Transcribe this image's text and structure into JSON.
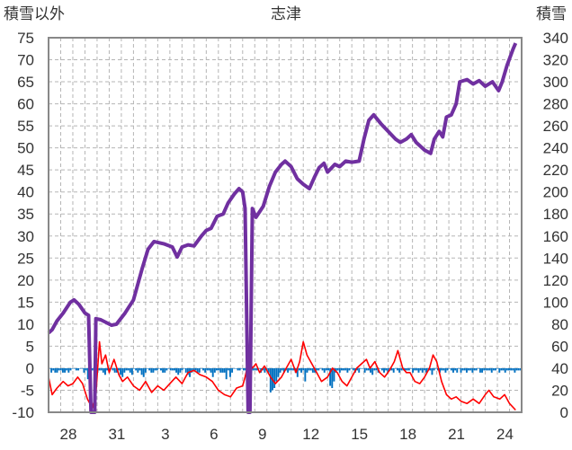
{
  "chart_data": {
    "type": "line",
    "title": "志津",
    "left_axis_label": "積雪以外",
    "right_axis_label": "積雪",
    "left_ylim": [
      -10,
      75
    ],
    "right_ylim": [
      0,
      340
    ],
    "left_ticks": [
      "75",
      "70",
      "65",
      "60",
      "55",
      "50",
      "45",
      "40",
      "35",
      "30",
      "25",
      "20",
      "15",
      "10",
      "5",
      "0",
      "-5",
      "-10"
    ],
    "right_ticks": [
      "340",
      "320",
      "300",
      "280",
      "260",
      "240",
      "220",
      "200",
      "180",
      "160",
      "140",
      "120",
      "100",
      "80",
      "60",
      "40",
      "20",
      "0"
    ],
    "x_ticks": [
      "28",
      "31",
      "3",
      "6",
      "9",
      "12",
      "15",
      "18",
      "21",
      "24"
    ],
    "grid": true,
    "colors": {
      "snow_depth": "#7030a0",
      "temperature": "#ff0000",
      "precipitation": "#0070c0"
    },
    "series": [
      {
        "key": "snow_depth",
        "axis": "right",
        "points": [
          [
            0,
            72
          ],
          [
            0.3,
            75
          ],
          [
            0.7,
            83
          ],
          [
            1.2,
            90
          ],
          [
            1.8,
            100
          ],
          [
            2.1,
            102
          ],
          [
            2.5,
            98
          ],
          [
            3,
            90
          ],
          [
            3.3,
            88
          ],
          [
            3.5,
            0
          ],
          [
            3.8,
            0
          ],
          [
            3.9,
            85
          ],
          [
            4.3,
            84
          ],
          [
            5.2,
            79
          ],
          [
            5.6,
            80
          ],
          [
            6.3,
            90
          ],
          [
            7,
            102
          ],
          [
            7.7,
            130
          ],
          [
            8.2,
            148
          ],
          [
            8.7,
            155
          ],
          [
            9.5,
            153
          ],
          [
            10.2,
            150
          ],
          [
            10.6,
            141
          ],
          [
            11,
            150
          ],
          [
            11.5,
            152
          ],
          [
            12,
            151
          ],
          [
            12.6,
            160
          ],
          [
            13,
            165
          ],
          [
            13.4,
            167
          ],
          [
            13.9,
            178
          ],
          [
            14.4,
            180
          ],
          [
            14.8,
            190
          ],
          [
            15.3,
            198
          ],
          [
            15.7,
            203
          ],
          [
            16,
            200
          ],
          [
            16.2,
            185
          ],
          [
            16.45,
            0
          ],
          [
            16.6,
            0
          ],
          [
            16.8,
            185
          ],
          [
            17.1,
            177
          ],
          [
            17.7,
            187
          ],
          [
            18.2,
            205
          ],
          [
            18.7,
            218
          ],
          [
            19.2,
            225
          ],
          [
            19.5,
            228
          ],
          [
            20,
            223
          ],
          [
            20.5,
            212
          ],
          [
            21,
            207
          ],
          [
            21.5,
            203
          ],
          [
            21.9,
            213
          ],
          [
            22.3,
            222
          ],
          [
            22.7,
            226
          ],
          [
            23,
            218
          ],
          [
            23.6,
            225
          ],
          [
            24,
            223
          ],
          [
            24.5,
            228
          ],
          [
            25,
            227
          ],
          [
            25.6,
            228
          ],
          [
            26,
            248
          ],
          [
            26.4,
            265
          ],
          [
            26.8,
            270
          ],
          [
            27.4,
            262
          ],
          [
            28,
            255
          ],
          [
            28.6,
            248
          ],
          [
            29,
            245
          ],
          [
            29.5,
            248
          ],
          [
            29.9,
            252
          ],
          [
            30.3,
            245
          ],
          [
            31,
            238
          ],
          [
            31.5,
            235
          ],
          [
            31.8,
            248
          ],
          [
            32.2,
            255
          ],
          [
            32.5,
            250
          ],
          [
            32.8,
            268
          ],
          [
            33.2,
            270
          ],
          [
            33.6,
            280
          ],
          [
            33.9,
            300
          ],
          [
            34.5,
            302
          ],
          [
            35,
            298
          ],
          [
            35.5,
            301
          ],
          [
            36,
            296
          ],
          [
            36.6,
            300
          ],
          [
            37.1,
            292
          ],
          [
            37.4,
            300
          ],
          [
            37.8,
            315
          ],
          [
            38.3,
            330
          ],
          [
            38.5,
            335
          ]
        ]
      },
      {
        "key": "temperature",
        "axis": "left",
        "points": [
          [
            0,
            -2
          ],
          [
            0.3,
            -6
          ],
          [
            0.7,
            -4.5
          ],
          [
            1.2,
            -3
          ],
          [
            1.6,
            -4
          ],
          [
            2,
            -3.5
          ],
          [
            2.4,
            -2
          ],
          [
            2.8,
            -3.5
          ],
          [
            3.2,
            -7
          ],
          [
            3.6,
            -9
          ],
          [
            3.9,
            -6
          ],
          [
            4.2,
            6
          ],
          [
            4.4,
            1
          ],
          [
            4.7,
            3
          ],
          [
            5,
            -1
          ],
          [
            5.4,
            2
          ],
          [
            5.8,
            -1.5
          ],
          [
            6.1,
            -3
          ],
          [
            6.5,
            -2
          ],
          [
            7,
            -4
          ],
          [
            7.5,
            -5
          ],
          [
            8,
            -3
          ],
          [
            8.5,
            -5.5
          ],
          [
            9,
            -4
          ],
          [
            9.5,
            -5
          ],
          [
            10,
            -3.5
          ],
          [
            10.5,
            -2
          ],
          [
            11,
            -3.5
          ],
          [
            11.5,
            -1
          ],
          [
            12,
            -0.5
          ],
          [
            12.5,
            -1.5
          ],
          [
            13,
            -2
          ],
          [
            13.5,
            -3
          ],
          [
            14,
            -5
          ],
          [
            14.5,
            -6
          ],
          [
            15,
            -6.5
          ],
          [
            15.5,
            -4.5
          ],
          [
            16,
            -4
          ],
          [
            16.2,
            -2
          ],
          [
            16.4,
            0.5
          ],
          [
            16.6,
            1.5
          ],
          [
            16.8,
            0
          ],
          [
            17.1,
            1
          ],
          [
            17.4,
            -1
          ],
          [
            17.8,
            0.5
          ],
          [
            18.3,
            -2
          ],
          [
            18.7,
            -3.5
          ],
          [
            19.2,
            -2
          ],
          [
            19.6,
            0
          ],
          [
            20,
            2
          ],
          [
            20.4,
            -1
          ],
          [
            20.7,
            1.5
          ],
          [
            21,
            6
          ],
          [
            21.3,
            3
          ],
          [
            21.7,
            1
          ],
          [
            22.1,
            -1
          ],
          [
            22.5,
            -3
          ],
          [
            23,
            -2
          ],
          [
            23.4,
            0
          ],
          [
            23.8,
            -1
          ],
          [
            24.2,
            -3
          ],
          [
            24.6,
            -4
          ],
          [
            25,
            -2
          ],
          [
            25.4,
            0
          ],
          [
            25.8,
            1
          ],
          [
            26.2,
            2
          ],
          [
            26.5,
            0
          ],
          [
            26.9,
            1.5
          ],
          [
            27.3,
            -1
          ],
          [
            27.7,
            -2
          ],
          [
            28.1,
            -0.5
          ],
          [
            28.5,
            1.5
          ],
          [
            28.8,
            4
          ],
          [
            29.2,
            0
          ],
          [
            29.5,
            -1
          ],
          [
            29.8,
            -1
          ],
          [
            30.2,
            -3
          ],
          [
            30.6,
            -3.5
          ],
          [
            31,
            -2
          ],
          [
            31.4,
            0
          ],
          [
            31.7,
            3
          ],
          [
            32,
            1.5
          ],
          [
            32.4,
            -3
          ],
          [
            32.8,
            -6
          ],
          [
            33.2,
            -7
          ],
          [
            33.6,
            -6.5
          ],
          [
            34,
            -7.5
          ],
          [
            34.5,
            -8
          ],
          [
            35,
            -7
          ],
          [
            35.5,
            -8
          ],
          [
            36,
            -6
          ],
          [
            36.3,
            -5
          ],
          [
            36.7,
            -6.5
          ],
          [
            37.2,
            -7
          ],
          [
            37.6,
            -6
          ],
          [
            38,
            -8
          ],
          [
            38.5,
            -9.5
          ]
        ]
      },
      {
        "key": "precipitation",
        "axis": "left",
        "values": [
          0,
          -1,
          -0.5,
          -1,
          -1,
          -0.5,
          -0.5,
          -1,
          -1,
          -0.5,
          -1,
          -0.5,
          0,
          0,
          -0.5,
          -0.5,
          0,
          0,
          -1,
          -0.5,
          -2.5,
          -1,
          -0.5,
          -0.5,
          -2.5,
          -1,
          -0.5,
          -0.5,
          -1,
          -1.5,
          -0.5,
          -0.5,
          0,
          -0.5,
          -1,
          -1,
          -0.5,
          -1.5,
          -2,
          -1,
          -0.5,
          -0.5,
          -1,
          -1.5,
          0,
          -0.5,
          -1,
          -0.5,
          -1.5,
          -2,
          -1,
          0,
          -0.5,
          -1,
          -1,
          -0.5,
          -0.5,
          0,
          -0.5,
          -1,
          -1,
          -0.5,
          0,
          -0.5,
          -0.5,
          -0.5,
          -1,
          -1.5,
          -1,
          -0.5,
          0,
          -1,
          -1.5,
          -2,
          -1,
          -0.5,
          -0.5,
          -1,
          -1,
          0,
          -0.5,
          -1,
          -0.5,
          -0.5,
          -1,
          -2,
          -1,
          -0.5,
          -0.5,
          -1,
          -1,
          -1,
          -2.5,
          -0.5,
          -2,
          -1,
          0,
          0,
          -0.5,
          -0.5,
          0,
          -0.5,
          -0.5,
          -1,
          -0.5,
          -1,
          -0.5,
          -0.5,
          -0.5,
          0,
          -1,
          -0.5,
          -1,
          -0.5,
          -1,
          -5.5,
          -5,
          -4.5,
          -3,
          -2,
          -1,
          -0.5,
          -1,
          -0.5,
          -1,
          -0.5,
          -0.5,
          -0.5,
          -1,
          -2,
          -0.5,
          -1,
          -0.5,
          -3,
          -1,
          -0.5,
          -0.5,
          -1,
          -1,
          -0.5,
          -0.5,
          0,
          -0.5,
          -1,
          -0.5,
          -0.5,
          -4,
          -4.5,
          -3,
          -1,
          -0.5,
          -1,
          -0.5,
          -0.5,
          -0.5,
          -1,
          -0.5,
          0,
          -0.5,
          -1,
          -0.5,
          -1,
          0,
          0,
          -1,
          -0.5,
          -0.5,
          -1,
          -1.5,
          -0.5,
          -0.5,
          -1,
          0,
          -0.5,
          -1,
          -0.5,
          -1,
          -0.5,
          -0.5,
          -1,
          0,
          -0.5,
          -1,
          -0.5,
          -0.5,
          -0.5,
          -0.5,
          -0.5,
          0,
          -1,
          -0.5,
          -0.5,
          -1,
          -0.5,
          -1,
          -0.5,
          -1,
          -0.5,
          -0.5,
          -1.5,
          -0.5,
          0,
          -0.5,
          -1,
          -0.5,
          -0.5,
          -1,
          -0.5,
          0,
          -0.5,
          -1,
          -0.5,
          -1,
          0,
          -1,
          -0.5,
          -0.5,
          -1,
          -0.5,
          -0.5,
          -1,
          -0.5,
          -0.5,
          0,
          -1,
          -1,
          -0.5,
          -0.5,
          -0.5,
          -0.5,
          -1,
          -0.5,
          -0.5,
          0,
          -1,
          -0.5,
          -0.5,
          -1,
          -0.5,
          -0.5,
          -0.5,
          -0.5,
          -1,
          -0.5,
          -0.5,
          -0.5
        ]
      }
    ]
  }
}
